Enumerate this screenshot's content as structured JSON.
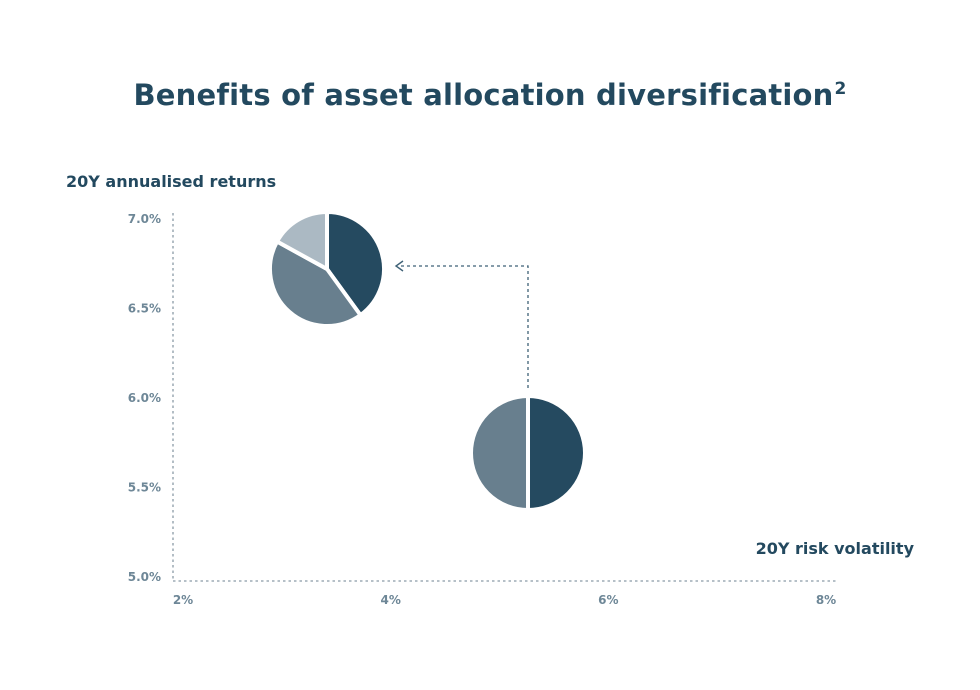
{
  "chart_data": {
    "type": "scatter",
    "title": "Benefits of asset allocation diversification",
    "title_superscript": "2",
    "ylabel": "20Y annualised returns",
    "xlabel": "20Y risk volatility",
    "xlim": [
      2,
      8
    ],
    "ylim": [
      5.0,
      7.0
    ],
    "x_ticks": [
      "2%",
      "4%",
      "6%",
      "8%"
    ],
    "y_ticks": [
      "7.0%",
      "6.5%",
      "6.0%",
      "5.5%",
      "5.0%"
    ],
    "grid": false,
    "points": [
      {
        "x": 5.4,
        "y": 5.7,
        "marker": "pie",
        "slices": [
          {
            "value": 50,
            "color": "#254a60"
          },
          {
            "value": 50,
            "color": "#687f8e"
          }
        ]
      },
      {
        "x": 3.4,
        "y": 6.75,
        "marker": "pie",
        "slices": [
          {
            "value": 40,
            "color": "#254a60"
          },
          {
            "value": 43,
            "color": "#687f8e"
          },
          {
            "value": 17,
            "color": "#abb9c3"
          }
        ]
      }
    ],
    "annotations": [
      {
        "type": "dashed-arrow",
        "from_point": 0,
        "to_point": 1
      }
    ],
    "colors": {
      "text": "#23495f",
      "ticks": "#6e8797",
      "axis": "#8a9aa6"
    }
  }
}
